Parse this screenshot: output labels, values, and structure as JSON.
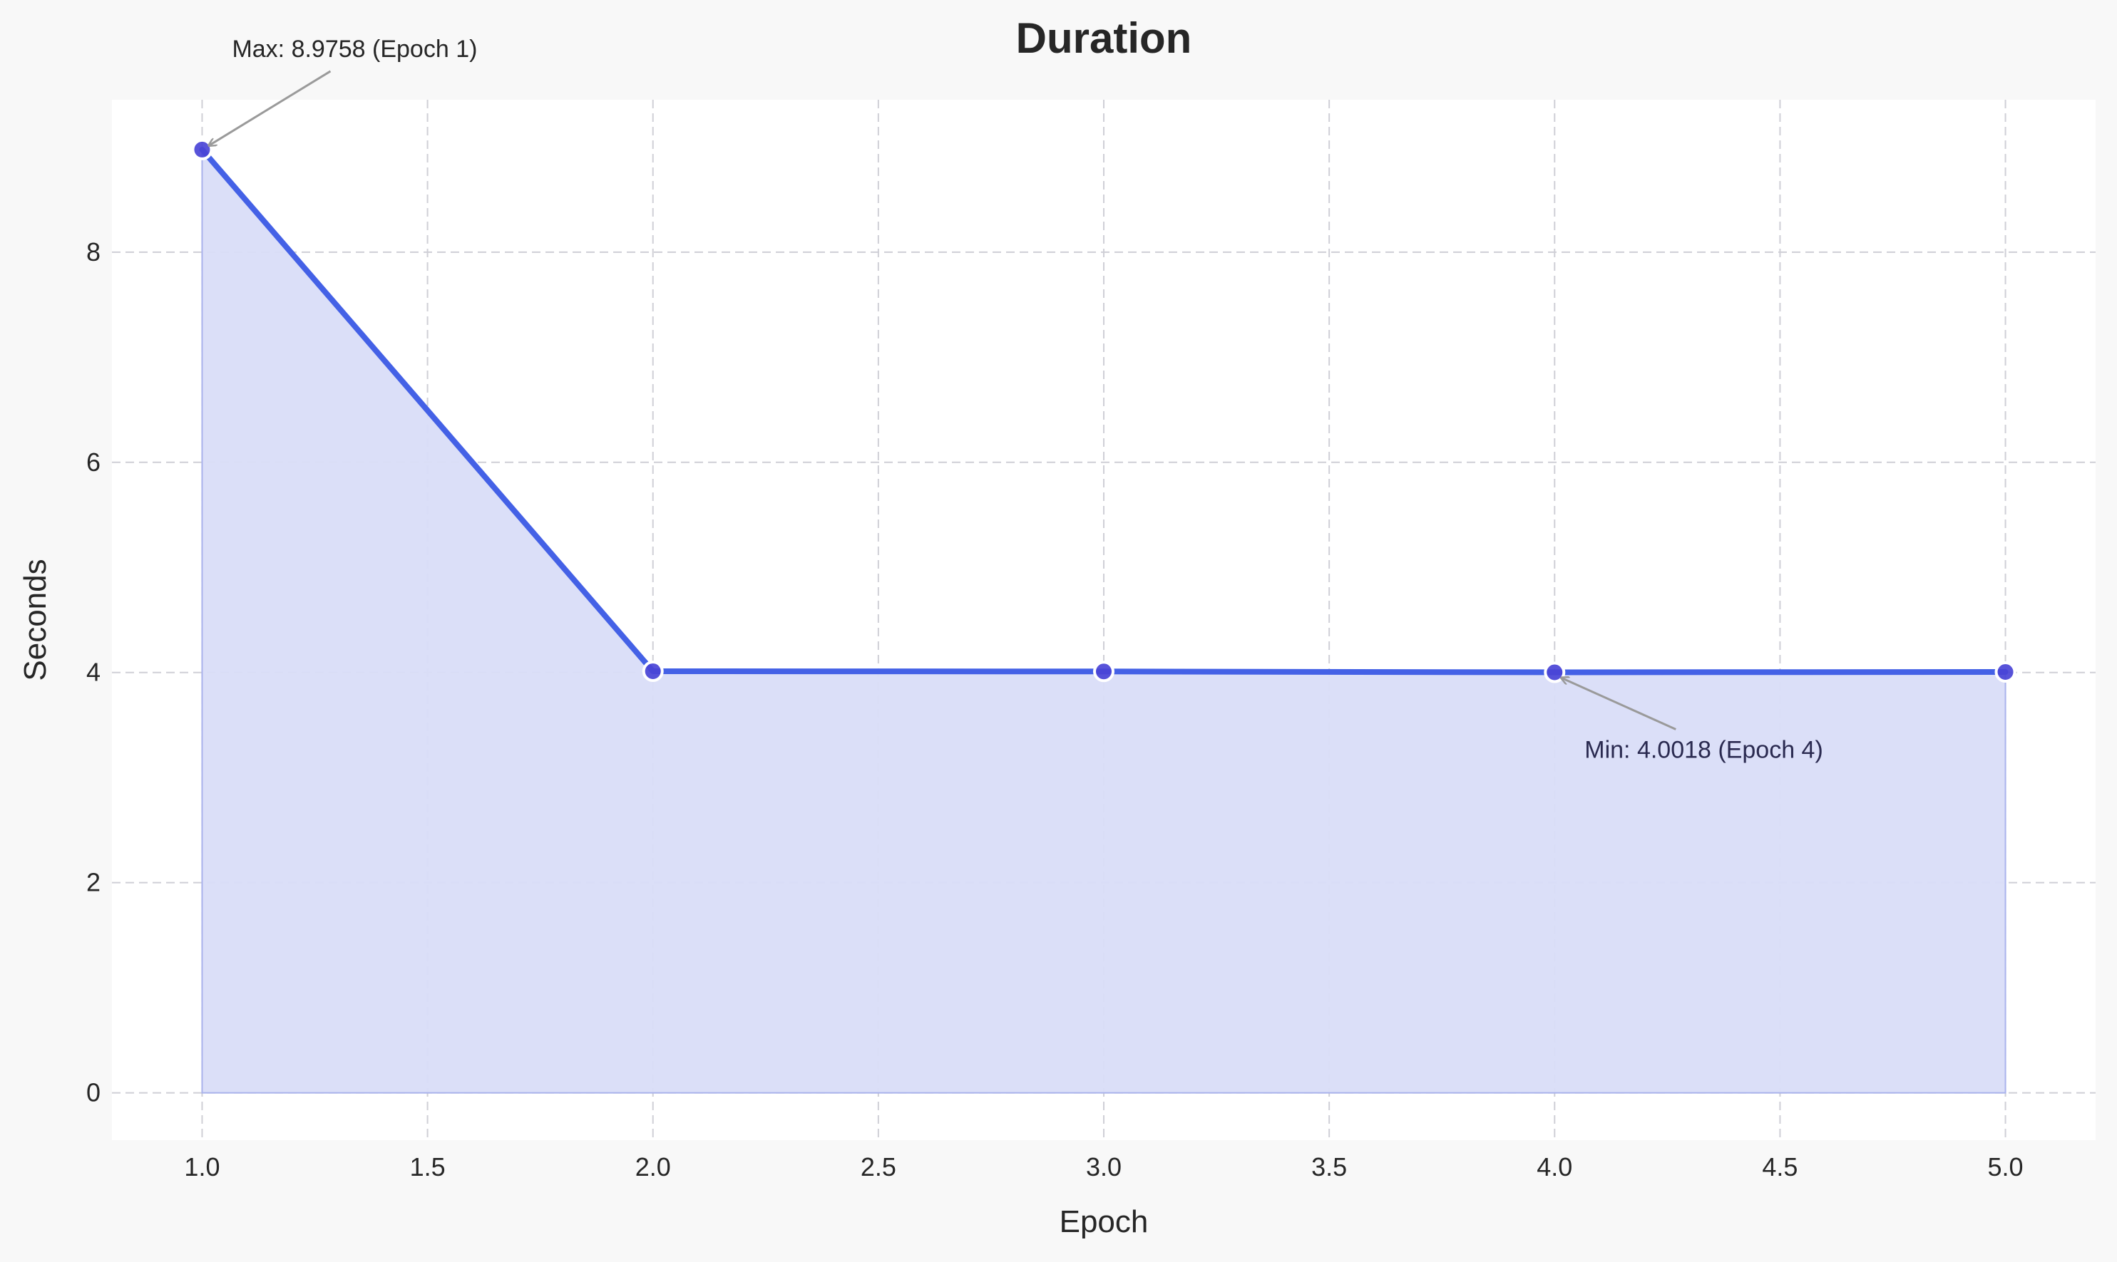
{
  "chart_data": {
    "type": "area",
    "title": "Duration",
    "xlabel": "Epoch",
    "ylabel": "Seconds",
    "x": [
      1,
      2,
      3,
      4,
      5
    ],
    "series": [
      {
        "values": [
          8.9758,
          4.012,
          4.01,
          4.0018,
          4.005
        ]
      }
    ],
    "xlim": [
      0.8,
      5.2
    ],
    "ylim": [
      -0.45,
      9.45
    ],
    "xticks": [
      "1.0",
      "1.5",
      "2.0",
      "2.5",
      "3.0",
      "3.5",
      "4.0",
      "4.5",
      "5.0"
    ],
    "yticks": [
      "0",
      "2",
      "4",
      "6",
      "8"
    ],
    "grid": true,
    "annotations": [
      {
        "text": "Max: 8.9758 (Epoch 1)",
        "x": 1,
        "y": 8.9758,
        "kind": "max"
      },
      {
        "text": "Min: 4.0018 (Epoch 4)",
        "x": 4,
        "y": 4.0018,
        "kind": "min"
      }
    ],
    "colors": {
      "line": "#4461e6",
      "marker": "#4a44d6",
      "fill": "#d9ddf8",
      "grid": "#cfcfd6",
      "plot_bg": "#ffffff",
      "page_bg": "#f8f8f8",
      "arrow": "#9a9a9a"
    }
  }
}
